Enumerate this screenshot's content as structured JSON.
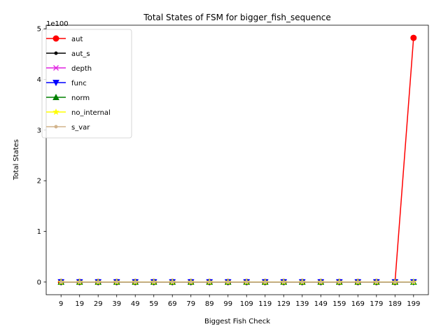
{
  "chart_data": {
    "type": "line",
    "title": "Total States of FSM for bigger_fish_sequence",
    "xlabel": "Biggest Fish Check",
    "ylabel": "Total States",
    "y_multiplier_label": "1e100",
    "y_scale_exponent": 100,
    "categories": [
      "9",
      "19",
      "29",
      "39",
      "49",
      "59",
      "69",
      "79",
      "89",
      "99",
      "109",
      "119",
      "129",
      "139",
      "149",
      "159",
      "169",
      "179",
      "189",
      "199"
    ],
    "yticks": [
      0,
      1,
      2,
      3,
      4,
      5
    ],
    "ylim": [
      -0.25,
      5.07
    ],
    "grid": false,
    "legend_position": "top-left",
    "series": [
      {
        "name": "aut",
        "color": "#ff0000",
        "marker": "circle",
        "values": [
          0,
          0,
          0,
          0,
          0,
          0,
          0,
          0,
          0,
          0,
          0,
          0,
          0,
          0,
          0,
          0,
          0,
          0,
          0,
          4.82
        ]
      },
      {
        "name": "aut_s",
        "color": "#000000",
        "marker": "point",
        "values": [
          0,
          0,
          0,
          0,
          0,
          0,
          0,
          0,
          0,
          0,
          0,
          0,
          0,
          0,
          0,
          0,
          0,
          0,
          0,
          0
        ]
      },
      {
        "name": "depth",
        "color": "#e020e0",
        "marker": "x",
        "values": [
          0,
          0,
          0,
          0,
          0,
          0,
          0,
          0,
          0,
          0,
          0,
          0,
          0,
          0,
          0,
          0,
          0,
          0,
          0,
          0
        ]
      },
      {
        "name": "func",
        "color": "#0000ff",
        "marker": "triangle-down",
        "values": [
          0,
          0,
          0,
          0,
          0,
          0,
          0,
          0,
          0,
          0,
          0,
          0,
          0,
          0,
          0,
          0,
          0,
          0,
          0,
          0
        ]
      },
      {
        "name": "norm",
        "color": "#008000",
        "marker": "triangle-up",
        "values": [
          0,
          0,
          0,
          0,
          0,
          0,
          0,
          0,
          0,
          0,
          0,
          0,
          0,
          0,
          0,
          0,
          0,
          0,
          0,
          0
        ]
      },
      {
        "name": "no_internal",
        "color": "#ffff00",
        "marker": "star",
        "values": [
          0,
          0,
          0,
          0,
          0,
          0,
          0,
          0,
          0,
          0,
          0,
          0,
          0,
          0,
          0,
          0,
          0,
          0,
          0,
          0
        ]
      },
      {
        "name": "s_var",
        "color": "#d2b48c",
        "marker": "point",
        "values": [
          0,
          0,
          0,
          0,
          0,
          0,
          0,
          0,
          0,
          0,
          0,
          0,
          0,
          0,
          0,
          0,
          0,
          0,
          0,
          0
        ]
      }
    ]
  }
}
